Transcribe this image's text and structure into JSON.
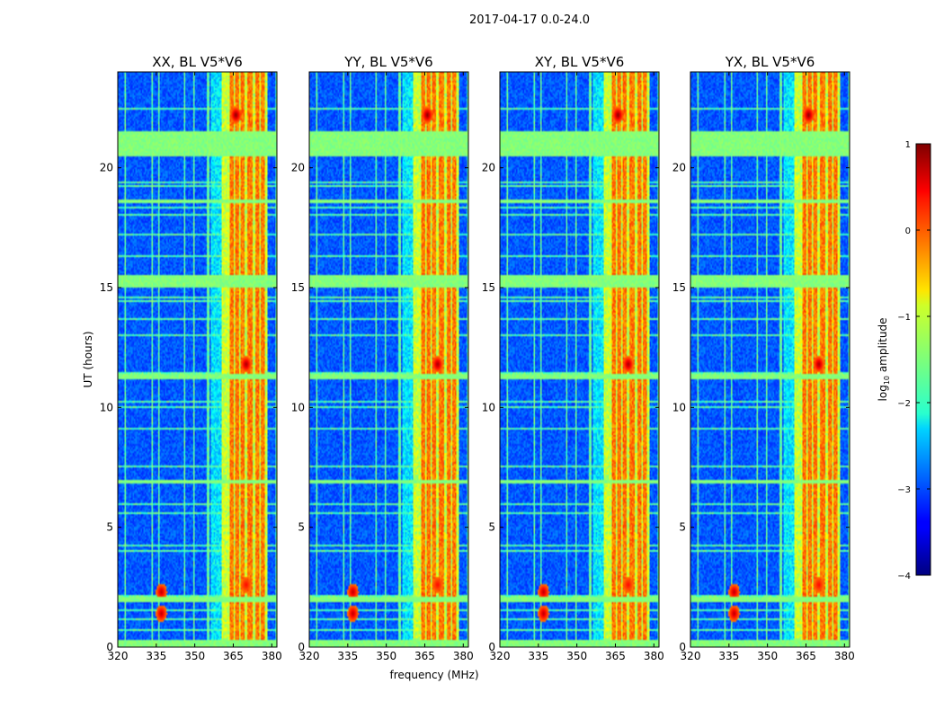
{
  "chart_data": {
    "type": "heatmap",
    "suptitle": "2017-04-17 0.0-24.0",
    "xlabel": "frequency (MHz)",
    "ylabel": "UT (hours)",
    "xlim": [
      320,
      382
    ],
    "ylim": [
      0,
      24
    ],
    "xticks": [
      320,
      335,
      350,
      365,
      380
    ],
    "yticks": [
      0,
      5,
      10,
      15,
      20
    ],
    "panels": [
      {
        "title": "XX, BL V5*V6"
      },
      {
        "title": "YY, BL V5*V6"
      },
      {
        "title": "XY, BL V5*V6"
      },
      {
        "title": "YX, BL V5*V6"
      }
    ],
    "colorbar": {
      "label": "log",
      "label_sub": "10",
      "label_rest": " amplitude",
      "range": [
        -4,
        1
      ],
      "ticks": [
        "1",
        "0",
        "−1",
        "−2",
        "−3",
        "−4"
      ],
      "tick_values": [
        1,
        0,
        -1,
        -2,
        -3,
        -4
      ],
      "colormap": "jet"
    },
    "features": {
      "signal_band_mhz": [
        360.5,
        378.5
      ],
      "strong_channels_mhz": [
        364.5,
        366.5,
        368.5,
        371.5,
        374.5,
        376.5
      ],
      "rfi_time_bands_hours": [
        [
          0.0,
          0.3
        ],
        [
          1.9,
          2.1
        ],
        [
          15.0,
          15.5
        ],
        [
          20.5,
          21.5
        ],
        [
          18.5,
          18.7
        ],
        [
          6.8,
          6.95
        ],
        [
          11.2,
          11.4
        ]
      ],
      "hot_spots": [
        {
          "freq": 337,
          "ut": 2.3,
          "level": 0.8
        },
        {
          "freq": 337,
          "ut": 1.4,
          "level": 0.8
        },
        {
          "freq": 366,
          "ut": 22.2,
          "level": 1.0
        },
        {
          "freq": 370,
          "ut": 11.8,
          "level": 0.9
        },
        {
          "freq": 370,
          "ut": 2.6,
          "level": 0.5
        }
      ]
    }
  }
}
